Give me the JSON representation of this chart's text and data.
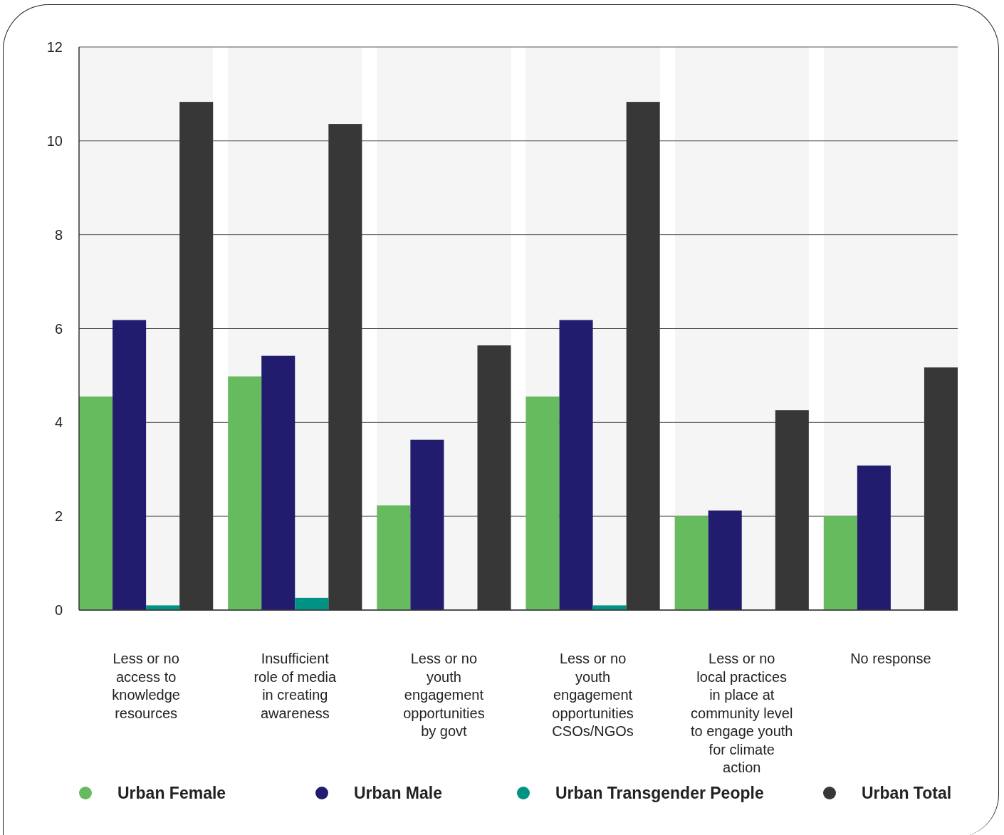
{
  "chart_data": {
    "type": "bar",
    "categories": [
      "Less or no access to knowledge resources",
      "Insufficient role of media in creating awareness",
      "Less or no youth engagement opportunities by govt",
      "Less or no youth engagement opportunities CSOs/NGOs",
      "Less or no local practices in place at community level to engage youth for climate action",
      "No response"
    ],
    "series": [
      {
        "name": "Urban Female",
        "color": "#66bb5e",
        "values": [
          4.55,
          4.98,
          2.23,
          4.55,
          2.0,
          2.0
        ]
      },
      {
        "name": "Urban Male",
        "color": "#221c6e",
        "values": [
          6.18,
          5.42,
          3.63,
          6.18,
          2.12,
          3.08
        ]
      },
      {
        "name": "Urban Transgender People",
        "color": "#009383",
        "values": [
          0.1,
          0.26,
          null,
          0.1,
          null,
          null
        ]
      },
      {
        "name": "Urban Total",
        "color": "#373737",
        "values": [
          10.83,
          10.36,
          5.64,
          10.83,
          4.26,
          5.17
        ]
      }
    ],
    "ylim": [
      0,
      12
    ],
    "yticks": [
      0,
      2,
      4,
      6,
      8,
      10,
      12
    ],
    "grid": "y",
    "legend": "bottom"
  }
}
